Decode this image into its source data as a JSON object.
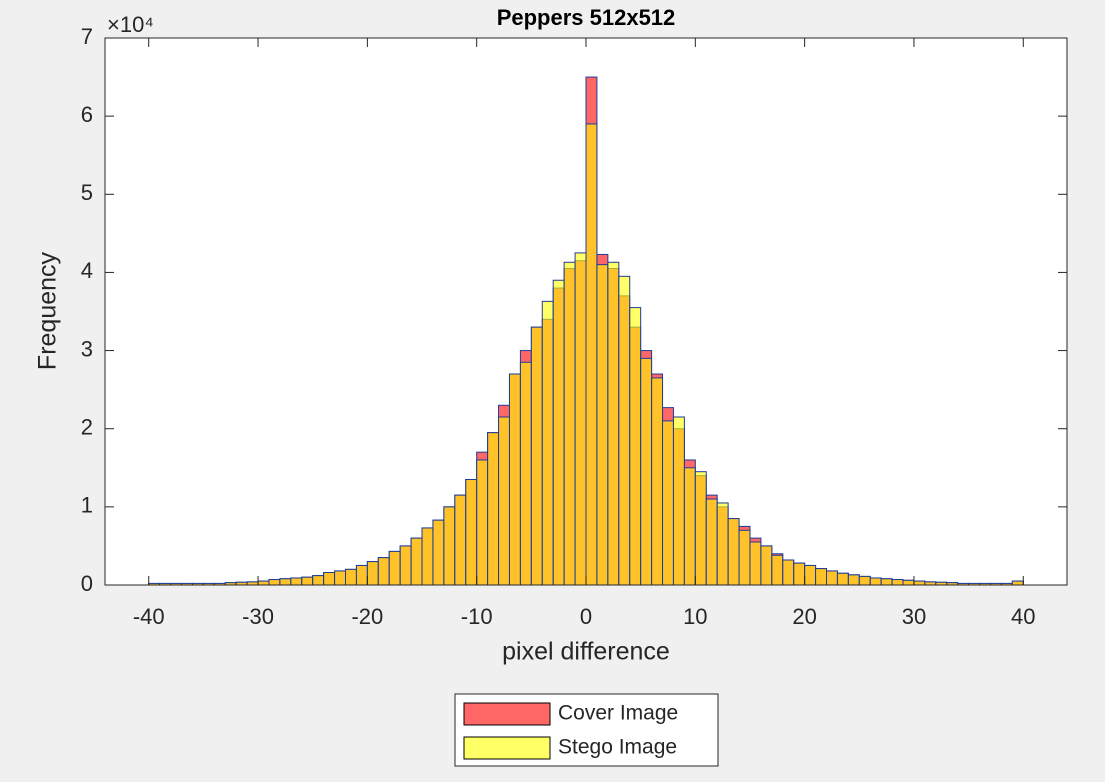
{
  "chart_data": {
    "type": "histogram",
    "title": "Peppers 512x512",
    "x_label": "pixel difference",
    "y_label": "Frequency",
    "y_exponent_label": "×10⁴",
    "bins": [
      -40,
      -39,
      -38,
      -37,
      -36,
      -35,
      -34,
      -33,
      -32,
      -31,
      -30,
      -29,
      -28,
      -27,
      -26,
      -25,
      -24,
      -23,
      -22,
      -21,
      -20,
      -19,
      -18,
      -17,
      -16,
      -15,
      -14,
      -13,
      -12,
      -11,
      -10,
      -9,
      -8,
      -7,
      -6,
      -5,
      -4,
      -3,
      -2,
      -1,
      0,
      1,
      2,
      3,
      4,
      5,
      6,
      7,
      8,
      9,
      10,
      11,
      12,
      13,
      14,
      15,
      16,
      17,
      18,
      19,
      20,
      21,
      22,
      23,
      24,
      25,
      26,
      27,
      28,
      29,
      30,
      31,
      32,
      33,
      34,
      35,
      36,
      37,
      38,
      39,
      40
    ],
    "series": [
      {
        "name": "Cover Image",
        "color": "#ff0000",
        "alpha": 0.6,
        "values": [
          200,
          200,
          200,
          200,
          200,
          200,
          200,
          300,
          350,
          400,
          500,
          700,
          800,
          900,
          1000,
          1200,
          1600,
          1800,
          2000,
          2500,
          3000,
          3500,
          4300,
          5000,
          6000,
          7300,
          8300,
          10000,
          11500,
          13500,
          17000,
          19500,
          23000,
          27000,
          30000,
          33000,
          34000,
          38000,
          40500,
          41500,
          65000,
          42300,
          40500,
          37000,
          33000,
          30000,
          27000,
          22700,
          20000,
          16000,
          14000,
          11500,
          10000,
          8500,
          7500,
          6000,
          5000,
          4000,
          3200,
          2800,
          2500,
          2100,
          1800,
          1500,
          1300,
          1100,
          900,
          800,
          700,
          600,
          500,
          400,
          350,
          300,
          200,
          200,
          200,
          200,
          200,
          500
        ]
      },
      {
        "name": "Stego Image",
        "color": "#ffff00",
        "alpha": 0.6,
        "values": [
          200,
          200,
          200,
          200,
          200,
          200,
          200,
          300,
          350,
          400,
          500,
          700,
          800,
          900,
          1000,
          1200,
          1600,
          1800,
          2000,
          2500,
          3000,
          3500,
          4300,
          5000,
          6000,
          7300,
          8300,
          10000,
          11500,
          13500,
          16000,
          19500,
          21500,
          27000,
          28500,
          33000,
          36300,
          39000,
          41300,
          42500,
          59000,
          41000,
          41300,
          39500,
          35500,
          29000,
          26500,
          21000,
          21500,
          15000,
          14500,
          11000,
          10500,
          8500,
          7000,
          5500,
          5000,
          3800,
          3200,
          2800,
          2500,
          2100,
          1800,
          1500,
          1300,
          1100,
          900,
          800,
          700,
          600,
          500,
          400,
          350,
          300,
          200,
          200,
          200,
          200,
          200,
          500
        ]
      }
    ],
    "edge_color": "#1f3c99",
    "xlim": [
      -44,
      44
    ],
    "xticks": [
      -40,
      -30,
      -20,
      -10,
      0,
      10,
      20,
      30,
      40
    ],
    "ylim": [
      0,
      70000
    ],
    "yticks": [
      {
        "value": 0,
        "label": "0"
      },
      {
        "value": 10000,
        "label": "1"
      },
      {
        "value": 20000,
        "label": "2"
      },
      {
        "value": 30000,
        "label": "3"
      },
      {
        "value": 40000,
        "label": "4"
      },
      {
        "value": 50000,
        "label": "5"
      },
      {
        "value": 60000,
        "label": "6"
      },
      {
        "value": 70000,
        "label": "7"
      }
    ],
    "legend_position": "outside-bottom"
  }
}
